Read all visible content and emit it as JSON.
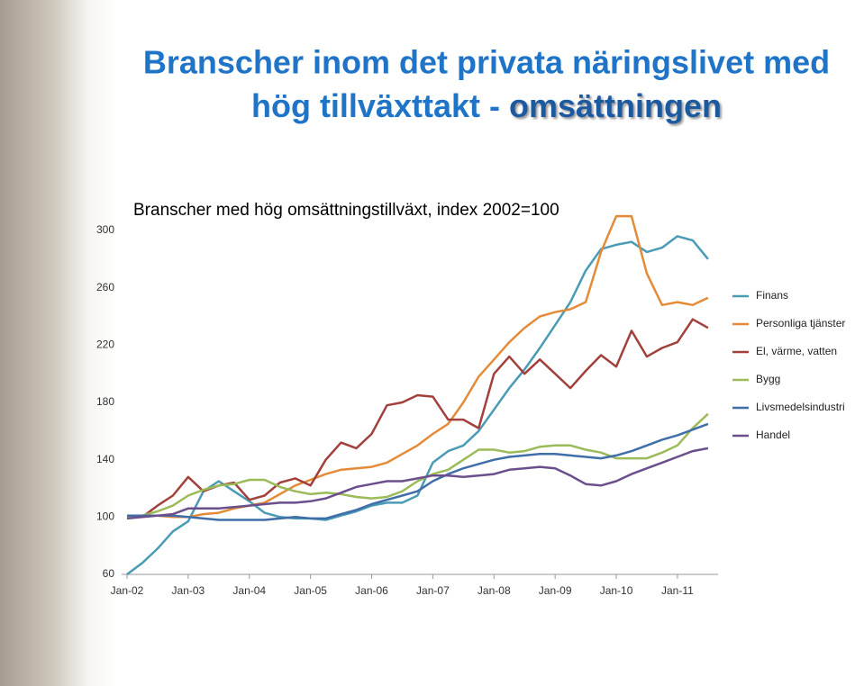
{
  "slide": {
    "title_line1": "Branscher inom det privata näringslivet med",
    "title_line2": "hög tillväxttakt - ",
    "title_highlight": "omsättningen"
  },
  "chart_data": {
    "type": "line",
    "title": "Branscher med hög omsättningstillväxt, index 2002=100",
    "categories": [
      "Jan-02",
      null,
      null,
      null,
      "Jan-03",
      null,
      null,
      null,
      "Jan-04",
      null,
      null,
      null,
      "Jan-05",
      null,
      null,
      null,
      "Jan-06",
      null,
      null,
      null,
      "Jan-07",
      null,
      null,
      null,
      "Jan-08",
      null,
      null,
      null,
      "Jan-09",
      null,
      null,
      null,
      "Jan-10",
      null,
      null,
      null,
      "Jan-11",
      null,
      null
    ],
    "ylim": [
      60,
      300
    ],
    "yticks": [
      60,
      100,
      140,
      180,
      220,
      260,
      300
    ],
    "grid": false,
    "legend": "right",
    "series": [
      {
        "name": "Finans",
        "color": "#4a9bb5",
        "values": [
          60,
          68,
          78,
          90,
          97,
          118,
          125,
          118,
          111,
          103,
          100,
          99,
          99,
          98,
          101,
          104,
          108,
          110,
          110,
          115,
          138,
          146,
          150,
          160,
          175,
          190,
          203,
          218,
          234,
          250,
          272,
          287,
          290,
          292,
          285,
          288,
          296,
          293,
          280
        ]
      },
      {
        "name": "Personliga tjänster",
        "color": "#e48b3a",
        "values": [
          100,
          101,
          101,
          100,
          100,
          102,
          103,
          106,
          108,
          110,
          116,
          122,
          126,
          130,
          133,
          134,
          135,
          138,
          144,
          150,
          158,
          165,
          180,
          198,
          210,
          222,
          232,
          240,
          243,
          245,
          250,
          285,
          310,
          310,
          270,
          248,
          250,
          248,
          253
        ]
      },
      {
        "name": "El, värme, vatten",
        "color": "#a2403c",
        "values": [
          100,
          100,
          108,
          115,
          128,
          118,
          122,
          124,
          112,
          115,
          124,
          127,
          122,
          140,
          152,
          148,
          158,
          178,
          180,
          185,
          184,
          168,
          168,
          162,
          200,
          212,
          200,
          210,
          200,
          190,
          202,
          213,
          205,
          230,
          212,
          218,
          222,
          238,
          232
        ]
      },
      {
        "name": "Bygg",
        "color": "#9bbb59",
        "values": [
          100,
          101,
          104,
          108,
          115,
          119,
          122,
          123,
          126,
          126,
          121,
          118,
          116,
          117,
          116,
          114,
          113,
          114,
          118,
          125,
          130,
          133,
          140,
          147,
          147,
          145,
          146,
          149,
          150,
          150,
          147,
          145,
          141,
          141,
          141,
          145,
          150,
          162,
          172
        ]
      },
      {
        "name": "Livsmedelsindustri",
        "color": "#3f6ea8",
        "values": [
          101,
          101,
          101,
          101,
          100,
          99,
          98,
          98,
          98,
          98,
          99,
          100,
          99,
          99,
          102,
          105,
          109,
          112,
          115,
          118,
          125,
          130,
          134,
          137,
          140,
          142,
          143,
          144,
          144,
          143,
          142,
          141,
          143,
          146,
          150,
          154,
          157,
          161,
          165
        ]
      },
      {
        "name": "Handel",
        "color": "#6b4f8c",
        "values": [
          99,
          100,
          101,
          102,
          106,
          106,
          106,
          107,
          108,
          109,
          110,
          110,
          111,
          113,
          117,
          121,
          123,
          125,
          125,
          127,
          129,
          129,
          128,
          129,
          130,
          133,
          134,
          135,
          134,
          129,
          123,
          122,
          125,
          130,
          134,
          138,
          142,
          146,
          148
        ]
      }
    ]
  }
}
